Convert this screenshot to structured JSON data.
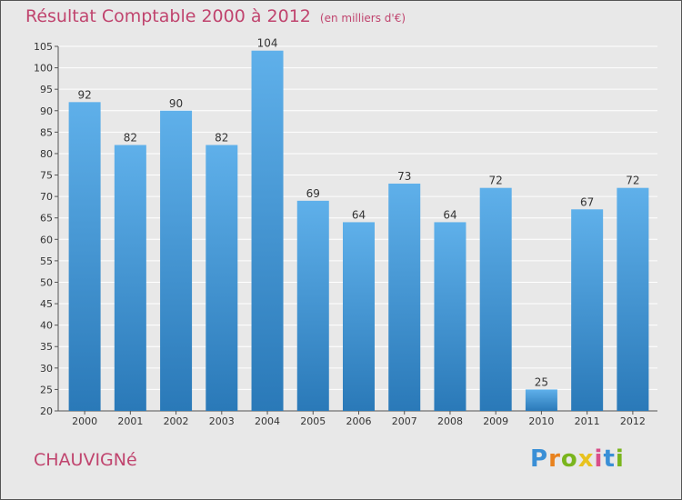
{
  "header": {
    "title": "Résultat Comptable 2000 à 2012",
    "subtitle": "(en milliers d'€)"
  },
  "footer": {
    "commune": "CHAUVIGNé",
    "logo_text": "Proxiti"
  },
  "colors": {
    "title": "#c0446e",
    "bar_top": "#5fb0ea",
    "bar_bottom": "#2a79b8",
    "grid": "#ffffff",
    "background": "#e8e8e8"
  },
  "chart_data": {
    "type": "bar",
    "title": "Résultat Comptable 2000 à 2012 (en milliers d'€)",
    "xlabel": "",
    "ylabel": "",
    "categories": [
      "2000",
      "2001",
      "2002",
      "2003",
      "2004",
      "2005",
      "2006",
      "2007",
      "2008",
      "2009",
      "2010",
      "2011",
      "2012"
    ],
    "values": [
      92,
      82,
      90,
      82,
      104,
      69,
      64,
      73,
      64,
      72,
      25,
      67,
      72
    ],
    "ylim": [
      20,
      105
    ],
    "yticks": [
      20,
      25,
      30,
      35,
      40,
      45,
      50,
      55,
      60,
      65,
      70,
      75,
      80,
      85,
      90,
      95,
      100,
      105
    ],
    "grid": true,
    "data_labels": true
  }
}
